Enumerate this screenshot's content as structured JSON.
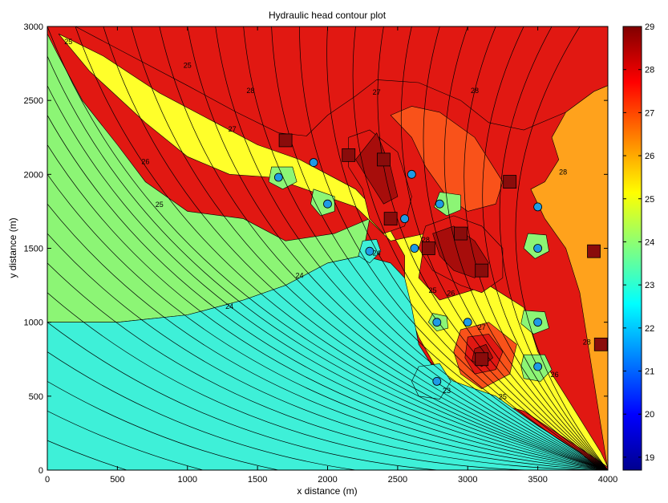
{
  "chart_data": {
    "type": "contour",
    "title": "Hydraulic head contour plot",
    "xlabel": "x distance (m)",
    "ylabel": "y distance (m)",
    "xlim": [
      0,
      4000
    ],
    "ylim": [
      0,
      3000
    ],
    "x_ticks": [
      0,
      500,
      1000,
      1500,
      2000,
      2500,
      3000,
      3500,
      4000
    ],
    "y_ticks": [
      0,
      500,
      1000,
      1500,
      2000,
      2500,
      3000
    ],
    "colorbar": {
      "range": [
        18.7,
        29
      ],
      "ticks": [
        19,
        20,
        21,
        22,
        23,
        24,
        25,
        26,
        27,
        28,
        29
      ],
      "colormap": "jet",
      "colors": [
        "#00008f",
        "#0000ff",
        "#0080ff",
        "#00ffff",
        "#80ff80",
        "#ffff00",
        "#ff8000",
        "#ff0000",
        "#800000"
      ]
    },
    "contour_levels": [
      23,
      24,
      25,
      26,
      27,
      28
    ],
    "level_colors": {
      "23": "#3ef0d8",
      "24": "#8cf575",
      "25": "#ffff2a",
      "26": "#ffa21c",
      "27": "#f9521a",
      "28": "#e11812",
      "29": "#a70d0b"
    },
    "zones": [
      {
        "level": 28,
        "polygon": [
          [
            200,
            3000
          ],
          [
            4000,
            3000
          ],
          [
            4000,
            2600
          ],
          [
            3900,
            2560
          ],
          [
            3700,
            2420
          ],
          [
            3400,
            2300
          ],
          [
            3150,
            2350
          ],
          [
            2950,
            2500
          ],
          [
            2650,
            2620
          ],
          [
            2350,
            2640
          ],
          [
            2200,
            2530
          ],
          [
            2000,
            2400
          ],
          [
            1850,
            2260
          ],
          [
            1650,
            2280
          ],
          [
            1350,
            2420
          ],
          [
            1000,
            2600
          ],
          [
            600,
            2800
          ]
        ]
      },
      {
        "level": 26,
        "polygon": [
          [
            4000,
            2600
          ],
          [
            3900,
            2560
          ],
          [
            3700,
            2420
          ],
          [
            3600,
            2250
          ],
          [
            3650,
            2100
          ],
          [
            3550,
            1950
          ],
          [
            3450,
            1900
          ],
          [
            3550,
            1700
          ],
          [
            3700,
            1500
          ],
          [
            3800,
            1200
          ],
          [
            3850,
            900
          ],
          [
            3950,
            300
          ],
          [
            4000,
            0
          ]
        ]
      },
      {
        "level": 27,
        "polygon": [
          [
            2450,
            2400
          ],
          [
            2600,
            2460
          ],
          [
            2800,
            2420
          ],
          [
            3050,
            2250
          ],
          [
            3250,
            1950
          ],
          [
            3200,
            1800
          ],
          [
            3000,
            1750
          ],
          [
            2850,
            1850
          ],
          [
            2700,
            2050
          ],
          [
            2600,
            2250
          ]
        ]
      },
      {
        "level": 24,
        "polygon": [
          [
            0,
            2950
          ],
          [
            80,
            2800
          ],
          [
            250,
            2500
          ],
          [
            500,
            2200
          ],
          [
            700,
            1950
          ],
          [
            1000,
            1750
          ],
          [
            1400,
            1700
          ],
          [
            1700,
            1550
          ],
          [
            2050,
            1600
          ],
          [
            2300,
            1700
          ],
          [
            2250,
            1450
          ],
          [
            2000,
            1400
          ],
          [
            1700,
            1250
          ],
          [
            1400,
            1150
          ],
          [
            1000,
            1050
          ],
          [
            500,
            1000
          ],
          [
            0,
            1000
          ]
        ]
      },
      {
        "level": 25,
        "polygon": [
          [
            80,
            2950
          ],
          [
            300,
            2700
          ],
          [
            700,
            2350
          ],
          [
            1000,
            2120
          ],
          [
            1300,
            2000
          ],
          [
            1600,
            1980
          ],
          [
            1900,
            1880
          ],
          [
            2200,
            1780
          ],
          [
            2450,
            1550
          ],
          [
            2700,
            1600
          ],
          [
            2650,
            1300
          ],
          [
            2800,
            1150
          ],
          [
            3150,
            1250
          ],
          [
            3400,
            1100
          ],
          [
            3500,
            800
          ],
          [
            3700,
            500
          ],
          [
            3950,
            120
          ],
          [
            4000,
            20
          ],
          [
            3800,
            150
          ],
          [
            3400,
            400
          ],
          [
            3000,
            500
          ],
          [
            2800,
            650
          ],
          [
            2650,
            900
          ],
          [
            2550,
            1150
          ],
          [
            2550,
            1450
          ],
          [
            2400,
            1700
          ],
          [
            2200,
            1900
          ],
          [
            2000,
            2000
          ],
          [
            1800,
            2100
          ],
          [
            1500,
            2200
          ],
          [
            1200,
            2350
          ],
          [
            800,
            2550
          ],
          [
            400,
            2800
          ]
        ]
      },
      {
        "level": 28,
        "polygon": [
          [
            2700,
            1650
          ],
          [
            2900,
            1720
          ],
          [
            3100,
            1650
          ],
          [
            3250,
            1500
          ],
          [
            3250,
            1300
          ],
          [
            3100,
            1200
          ],
          [
            2950,
            1250
          ],
          [
            2750,
            1350
          ],
          [
            2650,
            1500
          ]
        ]
      },
      {
        "level": 29,
        "polygon": [
          [
            2750,
            1600
          ],
          [
            2900,
            1650
          ],
          [
            3050,
            1550
          ],
          [
            3150,
            1400
          ],
          [
            3050,
            1300
          ],
          [
            2900,
            1350
          ],
          [
            2800,
            1450
          ]
        ]
      },
      {
        "level": 28,
        "polygon": [
          [
            2150,
            2250
          ],
          [
            2300,
            2300
          ],
          [
            2500,
            2150
          ],
          [
            2600,
            1850
          ],
          [
            2550,
            1650
          ],
          [
            2400,
            1600
          ],
          [
            2300,
            1700
          ],
          [
            2250,
            1900
          ],
          [
            2150,
            2050
          ]
        ]
      },
      {
        "level": 29,
        "polygon": [
          [
            2200,
            2100
          ],
          [
            2350,
            2280
          ],
          [
            2450,
            2050
          ],
          [
            2500,
            1850
          ],
          [
            2400,
            1800
          ],
          [
            2300,
            1950
          ]
        ]
      },
      {
        "level": 27,
        "polygon": [
          [
            2950,
            950
          ],
          [
            3150,
            1000
          ],
          [
            3350,
            850
          ],
          [
            3300,
            650
          ],
          [
            3100,
            550
          ],
          [
            2950,
            650
          ],
          [
            2900,
            800
          ]
        ]
      },
      {
        "level": 28,
        "polygon": [
          [
            3000,
            900
          ],
          [
            3150,
            920
          ],
          [
            3250,
            800
          ],
          [
            3200,
            680
          ],
          [
            3050,
            650
          ],
          [
            2980,
            760
          ]
        ]
      },
      {
        "level": 29,
        "polygon": [
          [
            3050,
            820
          ],
          [
            3130,
            850
          ],
          [
            3180,
            760
          ],
          [
            3100,
            700
          ],
          [
            3030,
            740
          ]
        ]
      },
      {
        "level": 23,
        "polygon": [
          [
            0,
            1000
          ],
          [
            500,
            1000
          ],
          [
            1000,
            1050
          ],
          [
            1400,
            1150
          ],
          [
            1700,
            1250
          ],
          [
            2000,
            1400
          ],
          [
            2250,
            1450
          ],
          [
            2450,
            1400
          ],
          [
            2550,
            1300
          ],
          [
            2600,
            1100
          ],
          [
            2650,
            850
          ],
          [
            2750,
            700
          ],
          [
            2900,
            600
          ],
          [
            3200,
            500
          ],
          [
            3500,
            300
          ],
          [
            3800,
            120
          ],
          [
            3950,
            0
          ],
          [
            0,
            0
          ]
        ]
      },
      {
        "level": 23,
        "polygon": [
          [
            2650,
            700
          ],
          [
            2800,
            720
          ],
          [
            2880,
            600
          ],
          [
            2800,
            480
          ],
          [
            2650,
            500
          ],
          [
            2600,
            600
          ]
        ]
      },
      {
        "level": 24,
        "polygon": [
          [
            3400,
            780
          ],
          [
            3550,
            780
          ],
          [
            3600,
            680
          ],
          [
            3520,
            600
          ],
          [
            3400,
            620
          ],
          [
            3380,
            700
          ]
        ]
      },
      {
        "level": 23,
        "polygon": [
          [
            2250,
            1550
          ],
          [
            2350,
            1560
          ],
          [
            2380,
            1480
          ],
          [
            2300,
            1400
          ],
          [
            2220,
            1450
          ]
        ]
      },
      {
        "level": 24,
        "polygon": [
          [
            1600,
            2050
          ],
          [
            1750,
            2050
          ],
          [
            1780,
            1950
          ],
          [
            1680,
            1900
          ],
          [
            1580,
            1950
          ]
        ]
      },
      {
        "level": 24,
        "polygon": [
          [
            1900,
            1900
          ],
          [
            2050,
            1850
          ],
          [
            2050,
            1750
          ],
          [
            1950,
            1720
          ],
          [
            1880,
            1800
          ]
        ]
      },
      {
        "level": 24,
        "polygon": [
          [
            2800,
            1880
          ],
          [
            2950,
            1860
          ],
          [
            2950,
            1760
          ],
          [
            2850,
            1720
          ],
          [
            2760,
            1780
          ]
        ]
      },
      {
        "level": 24,
        "polygon": [
          [
            3430,
            1600
          ],
          [
            3560,
            1590
          ],
          [
            3580,
            1480
          ],
          [
            3480,
            1430
          ],
          [
            3400,
            1500
          ]
        ]
      },
      {
        "level": 24,
        "polygon": [
          [
            3400,
            1080
          ],
          [
            3550,
            1070
          ],
          [
            3580,
            960
          ],
          [
            3470,
            920
          ],
          [
            3380,
            990
          ]
        ]
      },
      {
        "level": 24,
        "polygon": [
          [
            2750,
            1060
          ],
          [
            2850,
            1040
          ],
          [
            2860,
            960
          ],
          [
            2780,
            940
          ],
          [
            2720,
            1000
          ]
        ]
      }
    ],
    "contour_labels": [
      {
        "text": "23",
        "x": 2850,
        "y": 520
      },
      {
        "text": "24",
        "x": 1800,
        "y": 1300
      },
      {
        "text": "24",
        "x": 1300,
        "y": 1090
      },
      {
        "text": "24",
        "x": 2350,
        "y": 1450
      },
      {
        "text": "25",
        "x": 800,
        "y": 1780
      },
      {
        "text": "25",
        "x": 3250,
        "y": 480
      },
      {
        "text": "25",
        "x": 2750,
        "y": 1200
      },
      {
        "text": "26",
        "x": 700,
        "y": 2070
      },
      {
        "text": "26",
        "x": 2880,
        "y": 1180
      },
      {
        "text": "26",
        "x": 3620,
        "y": 630
      },
      {
        "text": "27",
        "x": 1320,
        "y": 2290
      },
      {
        "text": "27",
        "x": 2350,
        "y": 2540
      },
      {
        "text": "27",
        "x": 3100,
        "y": 950
      },
      {
        "text": "28",
        "x": 1450,
        "y": 2550
      },
      {
        "text": "28",
        "x": 3050,
        "y": 2550
      },
      {
        "text": "28",
        "x": 3680,
        "y": 2000
      },
      {
        "text": "28",
        "x": 2700,
        "y": 1540
      },
      {
        "text": "28",
        "x": 3850,
        "y": 850
      },
      {
        "text": "25",
        "x": 150,
        "y": 2880
      },
      {
        "text": "25",
        "x": 1000,
        "y": 2720
      }
    ],
    "wells_high": [
      [
        1700,
        2230
      ],
      [
        2150,
        2130
      ],
      [
        3300,
        1950
      ],
      [
        2450,
        1700
      ],
      [
        3900,
        1480
      ],
      [
        2720,
        1500
      ],
      [
        2950,
        1600
      ],
      [
        3100,
        1350
      ],
      [
        3100,
        750
      ],
      [
        3950,
        850
      ],
      [
        2400,
        2100
      ]
    ],
    "wells_low": [
      [
        1650,
        1980
      ],
      [
        1900,
        2080
      ],
      [
        2000,
        1800
      ],
      [
        2300,
        1480
      ],
      [
        2800,
        1800
      ],
      [
        3500,
        1500
      ],
      [
        3500,
        1000
      ],
      [
        2780,
        1000
      ],
      [
        2780,
        600
      ],
      [
        3500,
        700
      ],
      [
        2620,
        1500
      ],
      [
        3000,
        1000
      ],
      [
        3500,
        1780
      ],
      [
        2550,
        1700
      ],
      [
        2600,
        2000
      ]
    ]
  }
}
